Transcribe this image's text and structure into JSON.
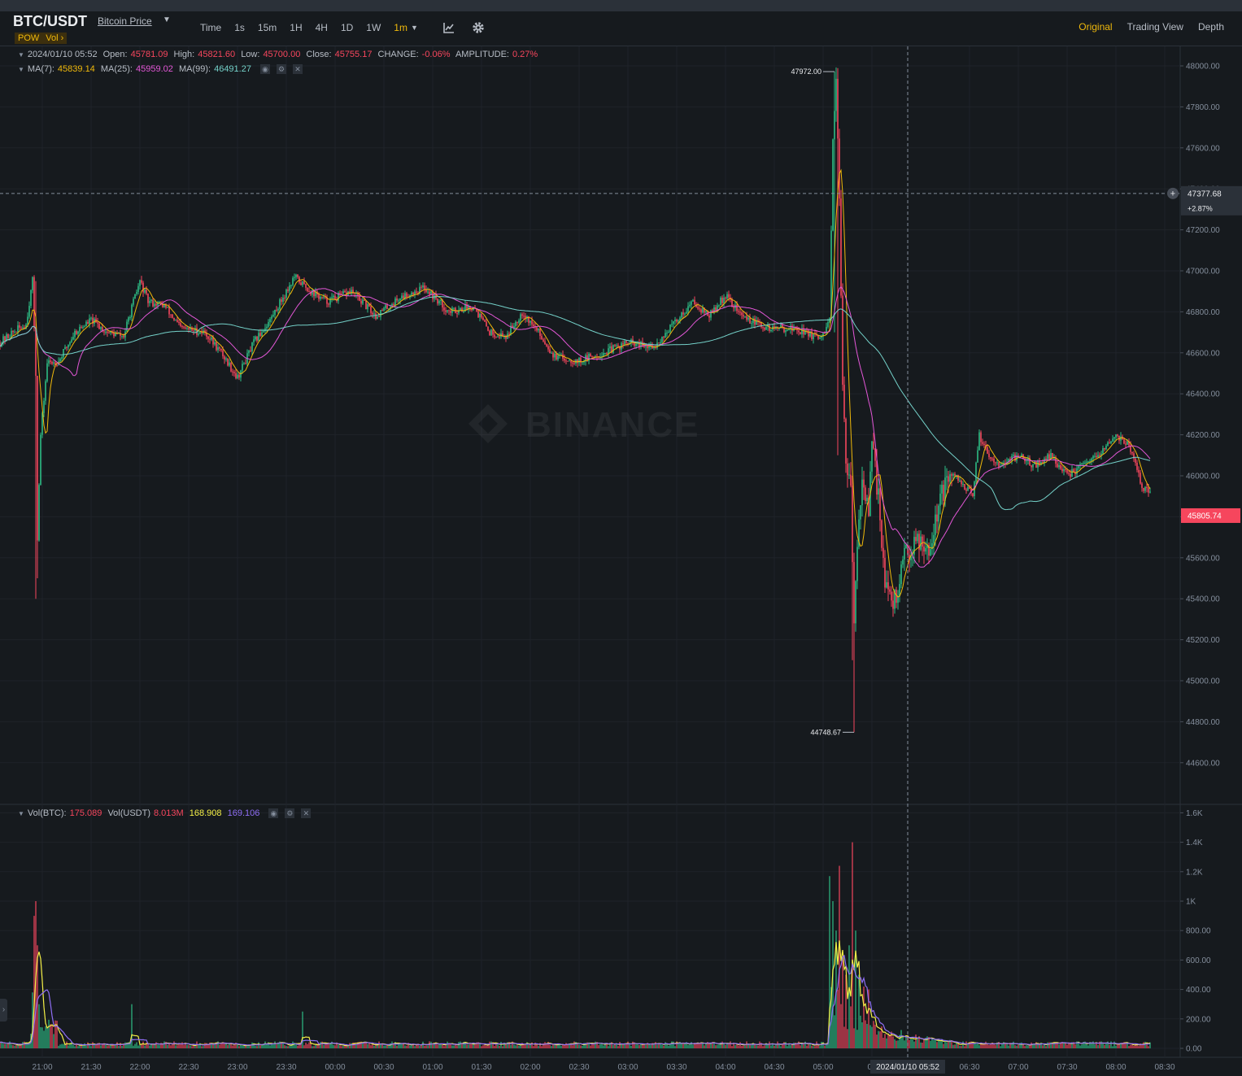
{
  "header": {
    "pair": "BTC/USDT",
    "price_link": "Bitcoin Price",
    "tags": [
      "POW",
      "Vol ›"
    ],
    "intervals": [
      {
        "label": "Time",
        "active": false
      },
      {
        "label": "1s",
        "active": false
      },
      {
        "label": "15m",
        "active": false
      },
      {
        "label": "1H",
        "active": false
      },
      {
        "label": "4H",
        "active": false
      },
      {
        "label": "1D",
        "active": false
      },
      {
        "label": "1W",
        "active": false
      },
      {
        "label": "1m",
        "active": true
      }
    ],
    "views": [
      {
        "label": "Original",
        "active": true
      },
      {
        "label": "Trading View",
        "active": false
      },
      {
        "label": "Depth",
        "active": false
      }
    ],
    "tool_icons": [
      "indicator-icon",
      "settings-icon"
    ]
  },
  "legend": {
    "datetime": "2024/01/10 05:52",
    "open_label": "Open:",
    "open": "45781.09",
    "high_label": "High:",
    "high": "45821.60",
    "low_label": "Low:",
    "low": "45700.00",
    "close_label": "Close:",
    "close": "45755.17",
    "change_label": "CHANGE:",
    "change": "-0.06%",
    "amplitude_label": "AMPLITUDE:",
    "amplitude": "0.27%",
    "ma7_label": "MA(7):",
    "ma7": "45839.14",
    "ma25_label": "MA(25):",
    "ma25": "45959.02",
    "ma99_label": "MA(99):",
    "ma99": "46491.27"
  },
  "vol_legend": {
    "btc_label": "Vol(BTC):",
    "btc": "175.089",
    "usdt_label": "Vol(USDT)",
    "usdt": "8.013M",
    "ma1": "168.908",
    "ma2": "169.106"
  },
  "watermark": "BINANCE",
  "colors": {
    "up": "#2ebd85",
    "down": "#f6465d",
    "ma7": "#f0b90b",
    "ma25": "#e357d7",
    "ma99": "#74d1c9",
    "vol_ma1": "#f5f047",
    "vol_ma2": "#8f6ef5",
    "accent": "#f0b90b"
  },
  "chart_data": [
    {
      "type": "candlestick",
      "interval": "1m",
      "yticks": [
        "48000.00",
        "47800.00",
        "47600.00",
        "47400.00",
        "47200.00",
        "47000.00",
        "46800.00",
        "46600.00",
        "46400.00",
        "46200.00",
        "46000.00",
        "45800.00",
        "45600.00",
        "45400.00",
        "45200.00",
        "45000.00",
        "44800.00",
        "44600.00"
      ],
      "ylim": [
        44530,
        48070
      ],
      "xticks": [
        "21:00",
        "21:30",
        "22:00",
        "22:30",
        "23:00",
        "23:30",
        "00:00",
        "00:30",
        "01:00",
        "01:30",
        "02:00",
        "02:30",
        "03:00",
        "03:30",
        "04:00",
        "04:30",
        "05:00",
        "05",
        "06:30",
        "07:00",
        "07:30",
        "08:00",
        "08:30"
      ],
      "xtick_minutes": [
        0,
        30,
        60,
        90,
        120,
        150,
        180,
        210,
        240,
        270,
        300,
        330,
        360,
        390,
        420,
        450,
        480,
        510,
        570,
        600,
        630,
        660,
        690
      ],
      "anchors": [
        {
          "t": -26,
          "p": 46650
        },
        {
          "t": -18,
          "p": 46700
        },
        {
          "t": -10,
          "p": 46740
        },
        {
          "t": -6,
          "p": 46950
        },
        {
          "t": -4,
          "p": 46500
        },
        {
          "t": -3,
          "p": 45700
        },
        {
          "t": -1,
          "p": 46200
        },
        {
          "t": 3,
          "p": 46550
        },
        {
          "t": 10,
          "p": 46560
        },
        {
          "t": 20,
          "p": 46700
        },
        {
          "t": 30,
          "p": 46760
        },
        {
          "t": 40,
          "p": 46700
        },
        {
          "t": 50,
          "p": 46680
        },
        {
          "t": 55,
          "p": 46820
        },
        {
          "t": 60,
          "p": 46950
        },
        {
          "t": 65,
          "p": 46850
        },
        {
          "t": 75,
          "p": 46830
        },
        {
          "t": 85,
          "p": 46720
        },
        {
          "t": 100,
          "p": 46700
        },
        {
          "t": 110,
          "p": 46600
        },
        {
          "t": 120,
          "p": 46480
        },
        {
          "t": 130,
          "p": 46650
        },
        {
          "t": 140,
          "p": 46760
        },
        {
          "t": 155,
          "p": 46970
        },
        {
          "t": 165,
          "p": 46900
        },
        {
          "t": 175,
          "p": 46850
        },
        {
          "t": 190,
          "p": 46900
        },
        {
          "t": 205,
          "p": 46780
        },
        {
          "t": 220,
          "p": 46870
        },
        {
          "t": 235,
          "p": 46920
        },
        {
          "t": 250,
          "p": 46800
        },
        {
          "t": 265,
          "p": 46830
        },
        {
          "t": 275,
          "p": 46700
        },
        {
          "t": 285,
          "p": 46680
        },
        {
          "t": 295,
          "p": 46800
        },
        {
          "t": 305,
          "p": 46700
        },
        {
          "t": 315,
          "p": 46580
        },
        {
          "t": 330,
          "p": 46560
        },
        {
          "t": 345,
          "p": 46600
        },
        {
          "t": 360,
          "p": 46650
        },
        {
          "t": 375,
          "p": 46620
        },
        {
          "t": 390,
          "p": 46760
        },
        {
          "t": 400,
          "p": 46850
        },
        {
          "t": 410,
          "p": 46780
        },
        {
          "t": 420,
          "p": 46880
        },
        {
          "t": 430,
          "p": 46780
        },
        {
          "t": 445,
          "p": 46720
        },
        {
          "t": 460,
          "p": 46720
        },
        {
          "t": 470,
          "p": 46700
        },
        {
          "t": 478,
          "p": 46660
        },
        {
          "t": 484,
          "p": 46750
        },
        {
          "t": 486,
          "p": 47600
        },
        {
          "t": 488,
          "p": 47900
        },
        {
          "t": 490,
          "p": 47300
        },
        {
          "t": 492,
          "p": 46500
        },
        {
          "t": 494,
          "p": 46100
        },
        {
          "t": 497,
          "p": 45900
        },
        {
          "t": 499,
          "p": 45250
        },
        {
          "t": 501,
          "p": 45700
        },
        {
          "t": 504,
          "p": 46000
        },
        {
          "t": 508,
          "p": 45800
        },
        {
          "t": 510,
          "p": 46150
        },
        {
          "t": 514,
          "p": 45900
        },
        {
          "t": 518,
          "p": 45500
        },
        {
          "t": 522,
          "p": 45350
        },
        {
          "t": 526,
          "p": 45450
        },
        {
          "t": 530,
          "p": 45600
        },
        {
          "t": 538,
          "p": 45700
        },
        {
          "t": 546,
          "p": 45650
        },
        {
          "t": 552,
          "p": 45900
        },
        {
          "t": 560,
          "p": 46000
        },
        {
          "t": 567,
          "p": 45950
        },
        {
          "t": 572,
          "p": 45900
        },
        {
          "t": 576,
          "p": 46200
        },
        {
          "t": 582,
          "p": 46100
        },
        {
          "t": 590,
          "p": 46050
        },
        {
          "t": 600,
          "p": 46100
        },
        {
          "t": 610,
          "p": 46050
        },
        {
          "t": 620,
          "p": 46100
        },
        {
          "t": 630,
          "p": 46000
        },
        {
          "t": 640,
          "p": 46050
        },
        {
          "t": 650,
          "p": 46100
        },
        {
          "t": 660,
          "p": 46200
        },
        {
          "t": 668,
          "p": 46150
        },
        {
          "t": 672,
          "p": 46050
        },
        {
          "t": 676,
          "p": 45950
        },
        {
          "t": 680,
          "p": 45920
        }
      ],
      "spikes": [
        {
          "t": -4,
          "high": 46950,
          "low": 45400
        },
        {
          "t": -3,
          "high": 46250,
          "low": 45500
        },
        {
          "t": 487,
          "high": 47972.0,
          "low": 46700
        },
        {
          "t": 489,
          "high": 47950,
          "low": 46100
        },
        {
          "t": 499,
          "high": 45600,
          "low": 44748.67
        },
        {
          "t": 498,
          "high": 46000,
          "low": 45100
        }
      ],
      "annotations": [
        {
          "label": "47972.00",
          "t": 487,
          "price": 47972.0
        },
        {
          "label": "44748.67",
          "t": 499,
          "price": 44748.67
        }
      ],
      "crosshair": {
        "time_label": "2024/01/10 05:52",
        "t": 532,
        "price_label": "47377.68",
        "price": 47377.68,
        "pct_label": "+2.87%"
      },
      "last_price": {
        "label": "45805.74",
        "price": 45805.74
      }
    },
    {
      "type": "bar",
      "name": "Vol(BTC)",
      "yticks": [
        "1.6K",
        "1.4K",
        "1.2K",
        "1K",
        "800.00",
        "600.00",
        "400.00",
        "200.00",
        "0.00"
      ],
      "ylim": [
        0,
        1600
      ],
      "base_level": 28,
      "peaks": [
        {
          "t": -6,
          "v": 380
        },
        {
          "t": -5,
          "v": 900
        },
        {
          "t": -4,
          "v": 1000
        },
        {
          "t": -3,
          "v": 700
        },
        {
          "t": -2,
          "v": 300
        },
        {
          "t": 55,
          "v": 300
        },
        {
          "t": 160,
          "v": 250
        },
        {
          "t": 484,
          "v": 1170
        },
        {
          "t": 486,
          "v": 1000
        },
        {
          "t": 488,
          "v": 800
        },
        {
          "t": 490,
          "v": 1240
        },
        {
          "t": 492,
          "v": 600
        },
        {
          "t": 494,
          "v": 500
        },
        {
          "t": 496,
          "v": 700
        },
        {
          "t": 498,
          "v": 1400
        },
        {
          "t": 500,
          "v": 800
        },
        {
          "t": 502,
          "v": 500
        },
        {
          "t": 505,
          "v": 420
        },
        {
          "t": 508,
          "v": 400
        }
      ]
    }
  ]
}
